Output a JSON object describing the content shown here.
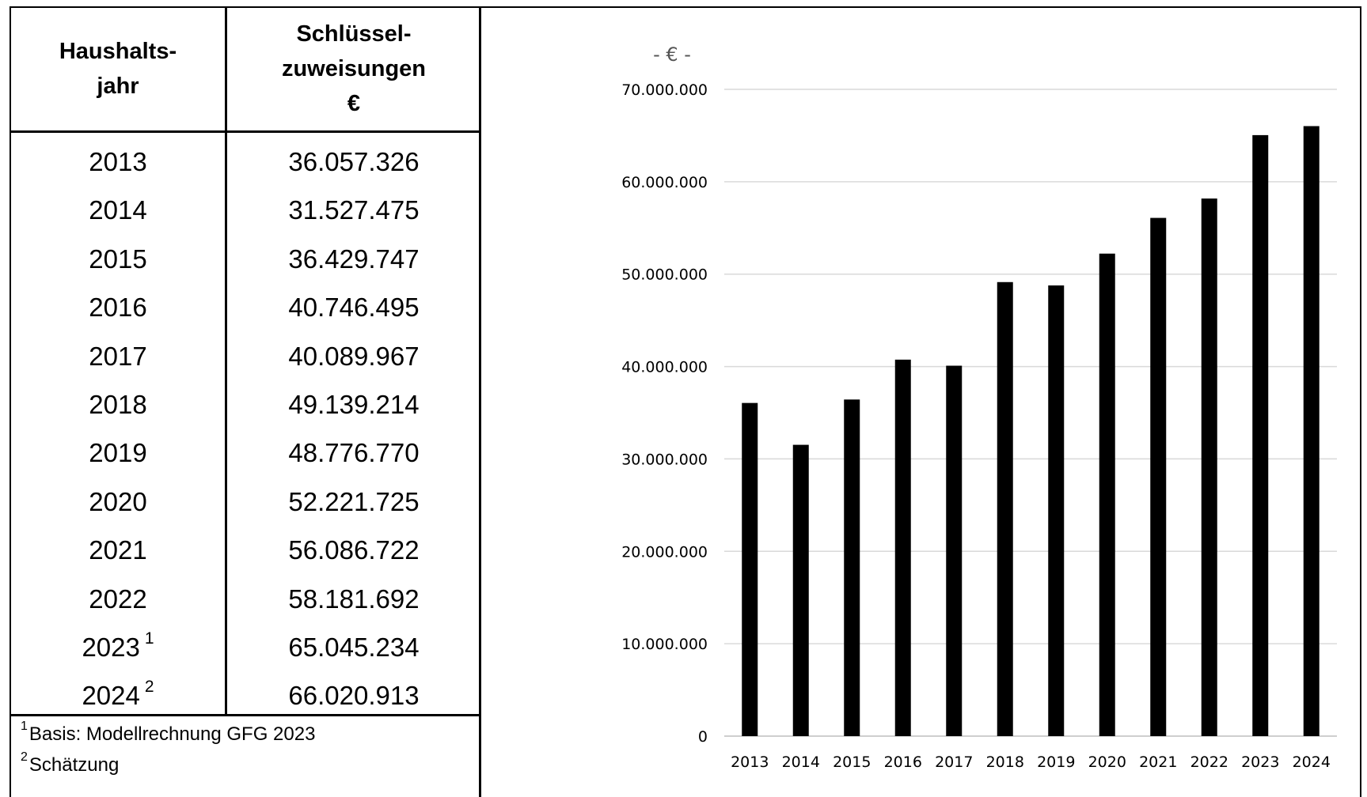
{
  "table": {
    "col1_header": [
      "Haushalts-",
      "jahr"
    ],
    "col2_header": [
      "Schlüssel-",
      "zuweisungen",
      "€"
    ],
    "rows": [
      {
        "year": "2013",
        "value": "36.057.326",
        "mark": ""
      },
      {
        "year": "2014",
        "value": "31.527.475",
        "mark": ""
      },
      {
        "year": "2015",
        "value": "36.429.747",
        "mark": ""
      },
      {
        "year": "2016",
        "value": "40.746.495",
        "mark": ""
      },
      {
        "year": "2017",
        "value": "40.089.967",
        "mark": ""
      },
      {
        "year": "2018",
        "value": "49.139.214",
        "mark": ""
      },
      {
        "year": "2019",
        "value": "48.776.770",
        "mark": ""
      },
      {
        "year": "2020",
        "value": "52.221.725",
        "mark": ""
      },
      {
        "year": "2021",
        "value": "56.086.722",
        "mark": ""
      },
      {
        "year": "2022",
        "value": "58.181.692",
        "mark": ""
      },
      {
        "year": "2023",
        "value": "65.045.234",
        "mark": "1"
      },
      {
        "year": "2024",
        "value": "66.020.913",
        "mark": "2"
      }
    ],
    "footnotes": [
      {
        "mark": "1",
        "text": "Basis: Modellrechnung GFG 2023"
      },
      {
        "mark": "2",
        "text": "Schätzung"
      }
    ]
  },
  "chart_data": {
    "type": "bar",
    "title": "",
    "xlabel": "",
    "ylabel": "- € -",
    "categories": [
      "2013",
      "2014",
      "2015",
      "2016",
      "2017",
      "2018",
      "2019",
      "2020",
      "2021",
      "2022",
      "2023",
      "2024"
    ],
    "values": [
      36057326,
      31527475,
      36429747,
      40746495,
      40089967,
      49139214,
      48776770,
      52221725,
      56086722,
      58181692,
      65045234,
      66020913
    ],
    "ylim": [
      0,
      70000000
    ],
    "yticks": [
      0,
      10000000,
      20000000,
      30000000,
      40000000,
      50000000,
      60000000,
      70000000
    ],
    "ytick_labels": [
      "0",
      "10.000.000",
      "20.000.000",
      "30.000.000",
      "40.000.000",
      "50.000.000",
      "60.000.000",
      "70.000.000"
    ],
    "grid": true,
    "legend": "none",
    "bar_color": "#000000",
    "grid_color": "#d9d9d9"
  }
}
